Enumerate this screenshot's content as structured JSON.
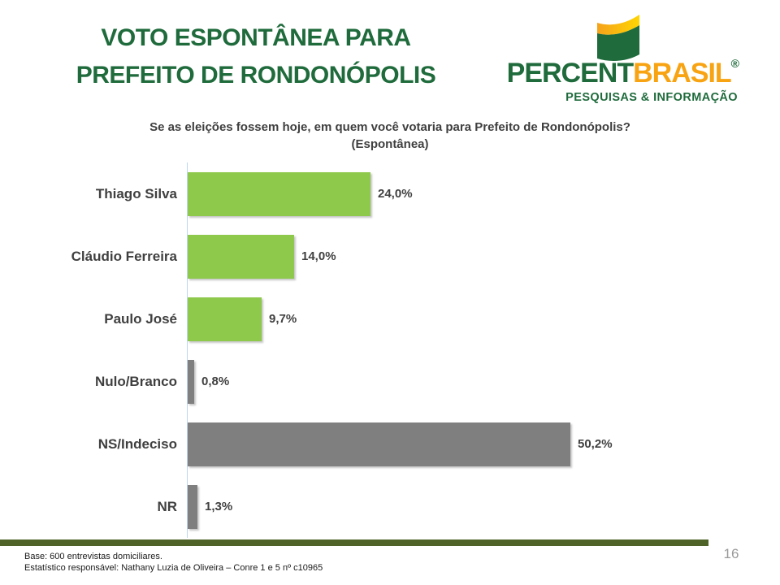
{
  "slide": {
    "title_line1": "VOTO ESPONTÂNEA PARA",
    "title_line2": "PREFEITO DE RONDONÓPOLIS",
    "page_number": "16"
  },
  "logo": {
    "brand_part1": "PERCENT",
    "brand_part2": "BRASIL",
    "registered_mark": "®",
    "tagline": "PESQUISAS & INFORMAÇÃO",
    "colors": {
      "green": "#1F6B3C",
      "orange": "#F8A312",
      "flag_yellow_light": "#FFD502",
      "flag_yellow_dark": "#F5A21B"
    }
  },
  "chart_data": {
    "type": "bar",
    "orientation": "horizontal",
    "title": "Se as eleições fossem hoje, em quem você votaria para Prefeito de Rondonópolis?",
    "subtitle": "(Espontânea)",
    "categories": [
      "Thiago Silva",
      "Cláudio Ferreira",
      "Paulo José",
      "Nulo/Branco",
      "NS/Indeciso",
      "NR"
    ],
    "values": [
      24.0,
      14.0,
      9.7,
      0.8,
      50.2,
      1.3
    ],
    "value_labels": [
      "24,0%",
      "14,0%",
      "9,7%",
      "0,8%",
      "50,2%",
      "1,3%"
    ],
    "bar_colors": [
      "#8FC94C",
      "#8FC94C",
      "#8FC94C",
      "#7F7F7F",
      "#7F7F7F",
      "#7F7F7F"
    ],
    "xlim": [
      0,
      55
    ],
    "grid": false,
    "legend": false,
    "axis_line_color": "#BDD7EE",
    "divider_color": "#4F6228"
  },
  "footer": {
    "line1": "Base: 600 entrevistas domiciliares.",
    "line2": "Estatístico responsável: Nathany Luzia de Oliveira – Conre 1 e 5 nº c10965"
  },
  "layout": {}
}
